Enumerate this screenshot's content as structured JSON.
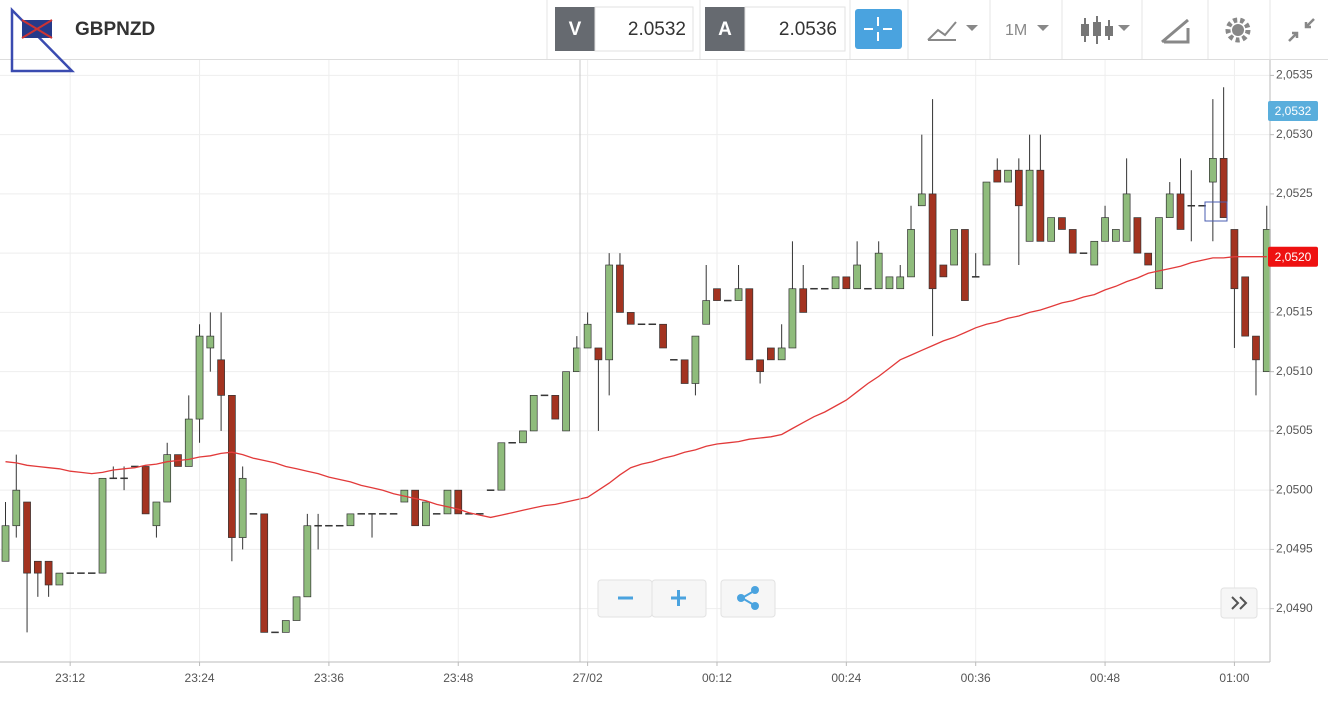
{
  "toolbar": {
    "symbol": "GBPNZD",
    "bid_label": "V",
    "bid": "2.0532",
    "ask_label": "A",
    "ask": "2.0536",
    "timeframe": "1M"
  },
  "chart_data": {
    "type": "candlestick",
    "up_color": "#8fbc7c",
    "down_color": "#a33320",
    "ma_color": "#e23a3a",
    "grid": true,
    "ylim": [
      2.04855,
      2.05363
    ],
    "yticks": [
      {
        "value": 2.0535,
        "label": "2,0535"
      },
      {
        "value": 2.053,
        "label": "2,0530"
      },
      {
        "value": 2.0525,
        "label": "2,0525"
      },
      {
        "value": 2.052,
        "label": "2,0520"
      },
      {
        "value": 2.0515,
        "label": "2,0515"
      },
      {
        "value": 2.051,
        "label": "2,0510"
      },
      {
        "value": 2.0505,
        "label": "2,0505"
      },
      {
        "value": 2.05,
        "label": "2,0500"
      },
      {
        "value": 2.0495,
        "label": "2,0495"
      },
      {
        "value": 2.049,
        "label": "2,0490"
      }
    ],
    "price_tags": [
      {
        "value": 2.0532,
        "label": "2,0532",
        "color": "#5aaedc"
      },
      {
        "value": 2.05197,
        "label": "2,0520",
        "color": "#ee1111"
      }
    ],
    "categories": [
      null,
      null,
      null,
      null,
      null,
      null,
      "23:12",
      null,
      null,
      null,
      null,
      null,
      null,
      null,
      null,
      null,
      null,
      null,
      "23:24",
      null,
      null,
      null,
      null,
      null,
      null,
      null,
      null,
      null,
      null,
      null,
      "23:36",
      null,
      null,
      null,
      null,
      null,
      null,
      null,
      null,
      null,
      null,
      null,
      "23:48",
      null,
      null,
      null,
      null,
      null,
      null,
      null,
      null,
      null,
      null,
      null,
      "27/02",
      null,
      null,
      null,
      null,
      null,
      null,
      null,
      null,
      null,
      null,
      null,
      "00:12",
      null,
      null,
      null,
      null,
      null,
      null,
      null,
      null,
      null,
      null,
      null,
      "00:24",
      null,
      null,
      null,
      null,
      null,
      null,
      null,
      null,
      null,
      null,
      null,
      "00:36",
      null,
      null,
      null,
      null,
      null,
      null,
      null,
      null,
      null,
      null,
      null,
      "00:48",
      null,
      null,
      null,
      null,
      null,
      null,
      null,
      null,
      null,
      null,
      null,
      "01:00",
      null,
      null,
      null
    ],
    "ohlc": [
      [
        2.0494,
        2.0499,
        2.0494,
        2.0497
      ],
      [
        2.0497,
        2.0503,
        2.0496,
        2.05
      ],
      [
        2.0499,
        2.0499,
        2.0488,
        2.0493
      ],
      [
        2.0494,
        2.0494,
        2.0491,
        2.0493
      ],
      [
        2.0494,
        2.0494,
        2.0491,
        2.0492
      ],
      [
        2.0492,
        2.0493,
        2.0492,
        2.0493
      ],
      [
        2.0493,
        2.0493,
        2.0493,
        2.0493
      ],
      [
        2.0493,
        2.0493,
        2.0493,
        2.0493
      ],
      [
        2.0493,
        2.0493,
        2.0493,
        2.0493
      ],
      [
        2.0493,
        2.0501,
        2.0493,
        2.0501
      ],
      [
        2.0501,
        2.0502,
        2.0501,
        2.0501
      ],
      [
        2.0501,
        2.0502,
        2.05,
        2.0501
      ],
      [
        2.0502,
        2.0502,
        2.0502,
        2.0502
      ],
      [
        2.0502,
        2.0502,
        2.0498,
        2.0498
      ],
      [
        2.0497,
        2.0499,
        2.0496,
        2.0499
      ],
      [
        2.0499,
        2.0504,
        2.0499,
        2.0503
      ],
      [
        2.0503,
        2.0503,
        2.0502,
        2.0502
      ],
      [
        2.0502,
        2.0508,
        2.0502,
        2.0506
      ],
      [
        2.0506,
        2.0514,
        2.0504,
        2.0513
      ],
      [
        2.0512,
        2.0515,
        2.051,
        2.0513
      ],
      [
        2.0511,
        2.0515,
        2.0505,
        2.0508
      ],
      [
        2.0508,
        2.0508,
        2.0494,
        2.0496
      ],
      [
        2.0496,
        2.0502,
        2.0495,
        2.0501
      ],
      [
        2.0498,
        2.0498,
        2.0498,
        2.0498
      ],
      [
        2.0498,
        2.0498,
        2.0488,
        2.0488
      ],
      [
        2.0488,
        2.0488,
        2.0488,
        2.0488
      ],
      [
        2.0488,
        2.0489,
        2.0488,
        2.0489
      ],
      [
        2.0489,
        2.0491,
        2.0489,
        2.0491
      ],
      [
        2.0491,
        2.0498,
        2.0491,
        2.0497
      ],
      [
        2.0497,
        2.0498,
        2.0495,
        2.0497
      ],
      [
        2.0497,
        2.0497,
        2.0497,
        2.0497
      ],
      [
        2.0497,
        2.0497,
        2.0497,
        2.0497
      ],
      [
        2.0497,
        2.0498,
        2.0497,
        2.0498
      ],
      [
        2.0498,
        2.0498,
        2.0498,
        2.0498
      ],
      [
        2.0498,
        2.0498,
        2.0496,
        2.0498
      ],
      [
        2.0498,
        2.0498,
        2.0498,
        2.0498
      ],
      [
        2.0498,
        2.0498,
        2.0498,
        2.0498
      ],
      [
        2.0499,
        2.05,
        2.0499,
        2.05
      ],
      [
        2.05,
        2.05,
        2.0497,
        2.0497
      ],
      [
        2.0497,
        2.0499,
        2.0497,
        2.0499
      ],
      [
        2.0498,
        2.0498,
        2.0498,
        2.0498
      ],
      [
        2.0498,
        2.05,
        2.0498,
        2.05
      ],
      [
        2.05,
        2.05,
        2.0498,
        2.0498
      ],
      [
        2.0498,
        2.0498,
        2.0498,
        2.0498
      ],
      [
        2.0498,
        2.0498,
        2.0498,
        2.0498
      ],
      [
        2.05,
        2.05,
        2.05,
        2.05
      ],
      [
        2.05,
        2.0504,
        2.05,
        2.0504
      ],
      [
        2.0504,
        2.0504,
        2.0504,
        2.0504
      ],
      [
        2.0504,
        2.0505,
        2.0504,
        2.0505
      ],
      [
        2.0505,
        2.0508,
        2.0505,
        2.0508
      ],
      [
        2.0508,
        2.0508,
        2.0508,
        2.0508
      ],
      [
        2.0508,
        2.0508,
        2.0506,
        2.0506
      ],
      [
        2.0505,
        2.051,
        2.0505,
        2.051
      ],
      [
        2.051,
        2.0513,
        2.051,
        2.0512
      ],
      [
        2.0512,
        2.0515,
        2.0512,
        2.0514
      ],
      [
        2.0512,
        2.0512,
        2.0505,
        2.0511
      ],
      [
        2.0511,
        2.052,
        2.0508,
        2.0519
      ],
      [
        2.0519,
        2.052,
        2.0515,
        2.0515
      ],
      [
        2.0515,
        2.0515,
        2.0514,
        2.0514
      ],
      [
        2.0514,
        2.0514,
        2.0514,
        2.0514
      ],
      [
        2.0514,
        2.0514,
        2.0514,
        2.0514
      ],
      [
        2.0514,
        2.0514,
        2.0512,
        2.0512
      ],
      [
        2.0511,
        2.0511,
        2.0511,
        2.0511
      ],
      [
        2.0511,
        2.0511,
        2.0509,
        2.0509
      ],
      [
        2.0509,
        2.0513,
        2.0508,
        2.0513
      ],
      [
        2.0514,
        2.0519,
        2.0514,
        2.0516
      ],
      [
        2.0517,
        2.0517,
        2.0516,
        2.0516
      ],
      [
        2.0516,
        2.0516,
        2.0516,
        2.0516
      ],
      [
        2.0516,
        2.0519,
        2.0516,
        2.0517
      ],
      [
        2.0517,
        2.0517,
        2.0511,
        2.0511
      ],
      [
        2.0511,
        2.0511,
        2.0509,
        2.051
      ],
      [
        2.0512,
        2.0512,
        2.0511,
        2.0511
      ],
      [
        2.0511,
        2.0514,
        2.0511,
        2.0512
      ],
      [
        2.0512,
        2.0521,
        2.0512,
        2.0517
      ],
      [
        2.0517,
        2.0519,
        2.0515,
        2.0515
      ],
      [
        2.0517,
        2.0517,
        2.0517,
        2.0517
      ],
      [
        2.0517,
        2.0517,
        2.0517,
        2.0517
      ],
      [
        2.0517,
        2.0518,
        2.0517,
        2.0518
      ],
      [
        2.0518,
        2.0518,
        2.0517,
        2.0517
      ],
      [
        2.0517,
        2.0521,
        2.0517,
        2.0519
      ],
      [
        2.0517,
        2.0517,
        2.0517,
        2.0517
      ],
      [
        2.0517,
        2.0521,
        2.0517,
        2.052
      ],
      [
        2.0517,
        2.0518,
        2.0517,
        2.0518
      ],
      [
        2.0517,
        2.0519,
        2.0517,
        2.0518
      ],
      [
        2.0518,
        2.0524,
        2.0518,
        2.0522
      ],
      [
        2.0524,
        2.053,
        2.0524,
        2.0525
      ],
      [
        2.0525,
        2.0533,
        2.0513,
        2.0517
      ],
      [
        2.0519,
        2.0519,
        2.0518,
        2.0518
      ],
      [
        2.0519,
        2.0522,
        2.0519,
        2.0522
      ],
      [
        2.0522,
        2.0522,
        2.0516,
        2.0516
      ],
      [
        2.0518,
        2.052,
        2.0518,
        2.0518
      ],
      [
        2.0519,
        2.0526,
        2.0519,
        2.0526
      ],
      [
        2.0527,
        2.0528,
        2.0526,
        2.0526
      ],
      [
        2.0526,
        2.0527,
        2.0526,
        2.0527
      ],
      [
        2.0527,
        2.0528,
        2.0519,
        2.0524
      ],
      [
        2.0521,
        2.053,
        2.0521,
        2.0527
      ],
      [
        2.0527,
        2.053,
        2.0521,
        2.0521
      ],
      [
        2.0521,
        2.0523,
        2.0521,
        2.0523
      ],
      [
        2.0523,
        2.0523,
        2.0522,
        2.0522
      ],
      [
        2.0522,
        2.0522,
        2.052,
        2.052
      ],
      [
        2.052,
        2.052,
        2.052,
        2.052
      ],
      [
        2.0519,
        2.0521,
        2.0519,
        2.0521
      ],
      [
        2.0521,
        2.0524,
        2.0521,
        2.0523
      ],
      [
        2.0521,
        2.0522,
        2.0521,
        2.0522
      ],
      [
        2.0521,
        2.0528,
        2.0521,
        2.0525
      ],
      [
        2.0523,
        2.0523,
        2.052,
        2.052
      ],
      [
        2.052,
        2.052,
        2.0519,
        2.0519
      ],
      [
        2.0517,
        2.0523,
        2.0517,
        2.0523
      ],
      [
        2.0523,
        2.0526,
        2.0523,
        2.0525
      ],
      [
        2.0525,
        2.0528,
        2.0522,
        2.0522
      ],
      [
        2.0524,
        2.0527,
        2.0521,
        2.0524
      ],
      [
        2.0524,
        2.0524,
        2.0524,
        2.0524
      ],
      [
        2.0526,
        2.0533,
        2.0521,
        2.0528
      ],
      [
        2.0528,
        2.0534,
        2.0523,
        2.0523
      ],
      [
        2.0522,
        2.0522,
        2.0512,
        2.0517
      ],
      [
        2.0518,
        2.0518,
        2.0513,
        2.0513
      ],
      [
        2.0513,
        2.0513,
        2.0508,
        2.0511
      ],
      [
        2.051,
        2.0524,
        2.051,
        2.0522
      ]
    ],
    "ma": [
      2.05024,
      2.05023,
      2.05021,
      2.0502,
      2.05019,
      2.05018,
      2.05016,
      2.05015,
      2.05014,
      2.05015,
      2.05017,
      2.05018,
      2.05019,
      2.05021,
      2.05022,
      2.05024,
      2.05025,
      2.05026,
      2.05028,
      2.05029,
      2.05031,
      2.05032,
      2.0503,
      2.05027,
      2.05025,
      2.05023,
      2.0502,
      2.05018,
      2.05016,
      2.05014,
      2.05011,
      2.05009,
      2.05007,
      2.05004,
      2.05002,
      2.05,
      2.04997,
      2.04995,
      2.04993,
      2.04991,
      2.04988,
      2.04986,
      2.04984,
      2.04981,
      2.04979,
      2.04977,
      2.04979,
      2.04981,
      2.04983,
      2.04985,
      2.04987,
      2.04988,
      2.0499,
      2.04992,
      2.04994,
      2.05,
      2.05006,
      2.05013,
      2.05019,
      2.05022,
      2.05024,
      2.05027,
      2.05029,
      2.05032,
      2.05034,
      2.05037,
      2.05039,
      2.0504,
      2.05041,
      2.05043,
      2.05044,
      2.05045,
      2.05047,
      2.05052,
      2.05057,
      2.05062,
      2.05066,
      2.05071,
      2.05076,
      2.05083,
      2.0509,
      2.05096,
      2.05103,
      2.0511,
      2.05114,
      2.05118,
      2.05122,
      2.05126,
      2.05129,
      2.05133,
      2.05137,
      2.0514,
      2.05142,
      2.05145,
      2.05147,
      2.0515,
      2.05152,
      2.05155,
      2.05158,
      2.0516,
      2.05163,
      2.05165,
      2.05169,
      2.05172,
      2.05176,
      2.05179,
      2.05183,
      2.05185,
      2.05187,
      2.05189,
      2.05192,
      2.05194,
      2.05196,
      2.05196,
      2.05197,
      2.05197,
      2.05197,
      2.05197
    ]
  }
}
